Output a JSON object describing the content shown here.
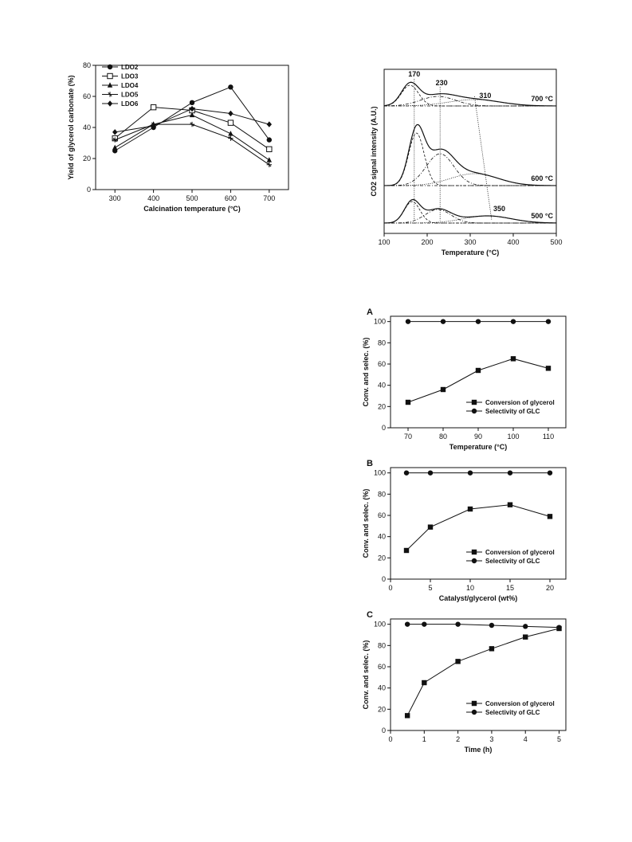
{
  "chart_data": [
    {
      "id": "yield",
      "type": "line",
      "xlabel": "Calcination temperature (°C)",
      "ylabel": "Yield of glycerol carbonate (%)",
      "xlim": [
        250,
        750
      ],
      "ylim": [
        0,
        80
      ],
      "xticks": [
        300,
        400,
        500,
        600,
        700
      ],
      "yticks": [
        0,
        20,
        40,
        60,
        80
      ],
      "legend_position": "top-left",
      "series": [
        {
          "name": "LDO2",
          "marker": "filled-circle",
          "x": [
            300,
            400,
            500,
            600,
            700
          ],
          "y": [
            25,
            40,
            56,
            66,
            32
          ]
        },
        {
          "name": "LDO3",
          "marker": "open-square",
          "x": [
            300,
            400,
            500,
            600,
            700
          ],
          "y": [
            33,
            53,
            51,
            43,
            26
          ]
        },
        {
          "name": "LDO4",
          "marker": "filled-triangle",
          "x": [
            300,
            400,
            500,
            600,
            700
          ],
          "y": [
            27,
            42,
            48,
            36,
            19
          ]
        },
        {
          "name": "LDO5",
          "marker": "star",
          "x": [
            300,
            400,
            500,
            600,
            700
          ],
          "y": [
            32,
            42,
            42,
            33,
            16
          ]
        },
        {
          "name": "LDO6",
          "marker": "filled-diamond",
          "x": [
            300,
            400,
            500,
            600,
            700
          ],
          "y": [
            37,
            41,
            52,
            49,
            42
          ]
        }
      ]
    },
    {
      "id": "tpd",
      "type": "line",
      "xlabel": "Temperature (°C)",
      "ylabel": "CO2 signal intensity (A.U.)",
      "xlim": [
        100,
        500
      ],
      "xticks": [
        100,
        200,
        300,
        400,
        500
      ],
      "curve_labels": [
        "700 °C",
        "600 °C",
        "500 °C"
      ],
      "peak_labels": [
        "170",
        "230",
        "310",
        "350"
      ],
      "peak_positions": [
        170,
        230,
        310,
        350
      ],
      "curves": [
        {
          "name": "700 °C",
          "peaks": [
            {
              "c": 160,
              "h": 26,
              "w": 20
            },
            {
              "c": 225,
              "h": 12,
              "w": 40
            },
            {
              "c": 310,
              "h": 8,
              "w": 60
            }
          ]
        },
        {
          "name": "600 °C",
          "peaks": [
            {
              "c": 175,
              "h": 66,
              "w": 18
            },
            {
              "c": 230,
              "h": 40,
              "w": 32
            },
            {
              "c": 310,
              "h": 15,
              "w": 55
            }
          ]
        },
        {
          "name": "500 °C",
          "peaks": [
            {
              "c": 165,
              "h": 27,
              "w": 18
            },
            {
              "c": 225,
              "h": 17,
              "w": 30
            },
            {
              "c": 340,
              "h": 9,
              "w": 55
            }
          ]
        }
      ]
    },
    {
      "id": "A",
      "type": "line",
      "panel_label": "A",
      "xlabel": "Temperature (°C)",
      "ylabel": "Conv. and selec. (%)",
      "xlim": [
        65,
        115
      ],
      "ylim": [
        0,
        105
      ],
      "xticks": [
        70,
        80,
        90,
        100,
        110
      ],
      "yticks": [
        0,
        20,
        40,
        60,
        80,
        100
      ],
      "legend_position": "bottom-right",
      "series": [
        {
          "name": "Conversion of glycerol",
          "marker": "filled-square",
          "x": [
            70,
            80,
            90,
            100,
            110
          ],
          "y": [
            24,
            36,
            54,
            65,
            56
          ]
        },
        {
          "name": "Selectivity of GLC",
          "marker": "filled-circle",
          "x": [
            70,
            80,
            90,
            100,
            110
          ],
          "y": [
            100,
            100,
            100,
            100,
            100
          ]
        }
      ]
    },
    {
      "id": "B",
      "type": "line",
      "panel_label": "B",
      "xlabel": "Catalyst/glycerol (wt%)",
      "ylabel": "Conv. and selec. (%)",
      "xlim": [
        0,
        22
      ],
      "ylim": [
        0,
        105
      ],
      "xticks": [
        0,
        5,
        10,
        15,
        20
      ],
      "yticks": [
        0,
        20,
        40,
        60,
        80,
        100
      ],
      "legend_position": "bottom-right",
      "series": [
        {
          "name": "Conversion of glycerol",
          "marker": "filled-square",
          "x": [
            2,
            5,
            10,
            15,
            20
          ],
          "y": [
            27,
            49,
            66,
            70,
            59
          ]
        },
        {
          "name": "Selectivity of GLC",
          "marker": "filled-circle",
          "x": [
            2,
            5,
            10,
            15,
            20
          ],
          "y": [
            100,
            100,
            100,
            100,
            100
          ]
        }
      ]
    },
    {
      "id": "C",
      "type": "line",
      "panel_label": "C",
      "xlabel": "Time (h)",
      "ylabel": "Conv. and selec. (%)",
      "xlim": [
        0,
        5.2
      ],
      "ylim": [
        0,
        105
      ],
      "xticks": [
        0,
        1,
        2,
        3,
        4,
        5
      ],
      "yticks": [
        0,
        20,
        40,
        60,
        80,
        100
      ],
      "legend_position": "bottom-right",
      "series": [
        {
          "name": "Conversion of glycerol",
          "marker": "filled-square",
          "x": [
            0.5,
            1,
            2,
            3,
            4,
            5
          ],
          "y": [
            14,
            45,
            65,
            77,
            88,
            96
          ]
        },
        {
          "name": "Selectivity of GLC",
          "marker": "filled-circle",
          "x": [
            0.5,
            1,
            2,
            3,
            4,
            5
          ],
          "y": [
            100,
            100,
            100,
            99,
            98,
            97
          ]
        }
      ]
    }
  ]
}
